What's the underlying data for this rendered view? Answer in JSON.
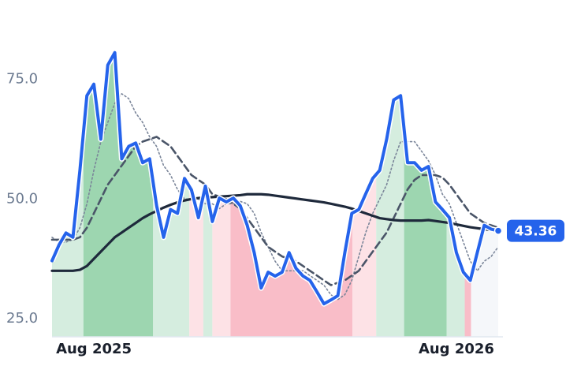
{
  "chart_data": {
    "type": "line",
    "x": [
      0,
      1,
      2,
      3,
      4,
      5,
      6,
      7,
      8,
      9,
      10,
      11,
      12,
      13,
      14,
      15,
      16,
      17,
      18,
      19,
      20,
      21,
      22,
      23,
      24,
      25,
      26,
      27,
      28,
      29,
      30,
      31,
      32,
      33,
      34,
      35,
      36,
      37,
      38,
      39,
      40,
      41,
      42,
      43,
      44,
      45,
      46,
      47,
      48,
      49,
      50,
      51,
      52,
      53,
      54,
      55,
      56,
      57,
      58,
      59,
      60,
      61,
      62,
      63,
      64
    ],
    "series": [
      {
        "color": "#7a8599",
        "style": "dotted",
        "width": 1.6,
        "values": [
          42,
          41,
          41,
          41.5,
          44,
          49,
          56,
          62,
          66,
          70,
          72,
          71,
          68,
          66,
          63,
          61,
          57,
          55,
          52,
          50,
          50,
          50,
          49,
          49,
          48,
          49,
          49,
          49.5,
          49,
          47,
          43,
          40,
          37,
          35,
          35,
          35,
          35,
          34,
          33,
          32,
          30,
          29,
          30,
          33,
          38,
          43,
          47,
          50,
          53,
          58,
          62,
          62,
          62,
          60,
          58,
          55,
          51,
          49,
          45,
          41,
          37,
          35,
          37,
          38,
          40
        ]
      },
      {
        "color": "#4a5568",
        "style": "dashed",
        "width": 2.6,
        "values": [
          41.5,
          41.5,
          41.5,
          41.5,
          42,
          44,
          47,
          50,
          53,
          55,
          57,
          59,
          61,
          62,
          62.5,
          63,
          62,
          61,
          59,
          57,
          55,
          54,
          53,
          51,
          50.5,
          50,
          49,
          48,
          46,
          44,
          42,
          40,
          39,
          38,
          37.5,
          37,
          36,
          35,
          34,
          33,
          32,
          32.5,
          33,
          34,
          35,
          37,
          39,
          41,
          43,
          46,
          49,
          52,
          54,
          55,
          55,
          55,
          54.5,
          53,
          51,
          49,
          47,
          46,
          45,
          44.5,
          44
        ]
      },
      {
        "color": "#1e293b",
        "style": "solid",
        "width": 3.2,
        "values": [
          35,
          35,
          35,
          35,
          35.2,
          36,
          37.5,
          39,
          40.5,
          42,
          43,
          44,
          45,
          46,
          46.8,
          47.5,
          48.2,
          48.8,
          49.3,
          49.7,
          50,
          50.2,
          50.3,
          50.4,
          50.5,
          50.6,
          50.7,
          50.8,
          51,
          51,
          51,
          50.9,
          50.7,
          50.5,
          50.3,
          50.1,
          49.9,
          49.7,
          49.5,
          49.3,
          49,
          48.7,
          48.4,
          48,
          47.5,
          47,
          46.5,
          46,
          45.8,
          45.6,
          45.5,
          45.5,
          45.5,
          45.5,
          45.6,
          45.4,
          45.2,
          45,
          44.7,
          44.4,
          44.1,
          43.9,
          43.7,
          43.5,
          43.6
        ]
      },
      {
        "color": "#2563eb",
        "style": "solid",
        "width": 4,
        "values": [
          37.1,
          40.4,
          42.9,
          42,
          56,
          71.6,
          74,
          62.5,
          78,
          80.6,
          58.4,
          61,
          61.7,
          57.6,
          58.4,
          48.6,
          42,
          47.8,
          47,
          54.3,
          51.9,
          46.1,
          52.7,
          45.3,
          50.2,
          49.4,
          50.2,
          48.6,
          44.5,
          38.8,
          31.4,
          34.7,
          33.9,
          34.7,
          38.8,
          35.5,
          33.9,
          33,
          30.6,
          28.1,
          28.9,
          29.8,
          38.8,
          47,
          47.8,
          51.1,
          54.3,
          56,
          62.5,
          70.7,
          71.6,
          57.6,
          57.6,
          56,
          56.8,
          49.4,
          47.8,
          46.1,
          38.8,
          34.7,
          33,
          38.8,
          44.5,
          43.7,
          43.36
        ]
      }
    ],
    "regions": [
      {
        "start": 0,
        "end": 4.5,
        "color": "#d5eddf"
      },
      {
        "start": 4.5,
        "end": 14.5,
        "color": "#9dd6b0"
      },
      {
        "start": 14.5,
        "end": 19.7,
        "color": "#d5eddf"
      },
      {
        "start": 19.7,
        "end": 21.7,
        "color": "#fde2e6"
      },
      {
        "start": 21.7,
        "end": 23,
        "color": "#d5eddf"
      },
      {
        "start": 23,
        "end": 25.6,
        "color": "#fde2e6"
      },
      {
        "start": 25.6,
        "end": 43.1,
        "color": "#f9bdc8"
      },
      {
        "start": 43.1,
        "end": 46.5,
        "color": "#fde2e6"
      },
      {
        "start": 46.5,
        "end": 50.5,
        "color": "#d5eddf"
      },
      {
        "start": 50.5,
        "end": 56.6,
        "color": "#9dd6b0"
      },
      {
        "start": 56.6,
        "end": 59.2,
        "color": "#d5eddf"
      },
      {
        "start": 59.2,
        "end": 60.1,
        "color": "#f9bdc8"
      },
      {
        "start": 60.1,
        "end": 64,
        "color": "#f5f7fa"
      }
    ],
    "xlim": [
      0,
      64
    ],
    "xticks": [
      {
        "value": 6,
        "label": "Aug 2025"
      },
      {
        "value": 58,
        "label": "Aug 2026"
      }
    ],
    "ylim": [
      21.2,
      85
    ],
    "yticks": [
      {
        "value": 25,
        "label": "25.0"
      },
      {
        "value": 50,
        "label": "50.0"
      },
      {
        "value": 75,
        "label": "75.0"
      }
    ],
    "grid": false
  }
}
